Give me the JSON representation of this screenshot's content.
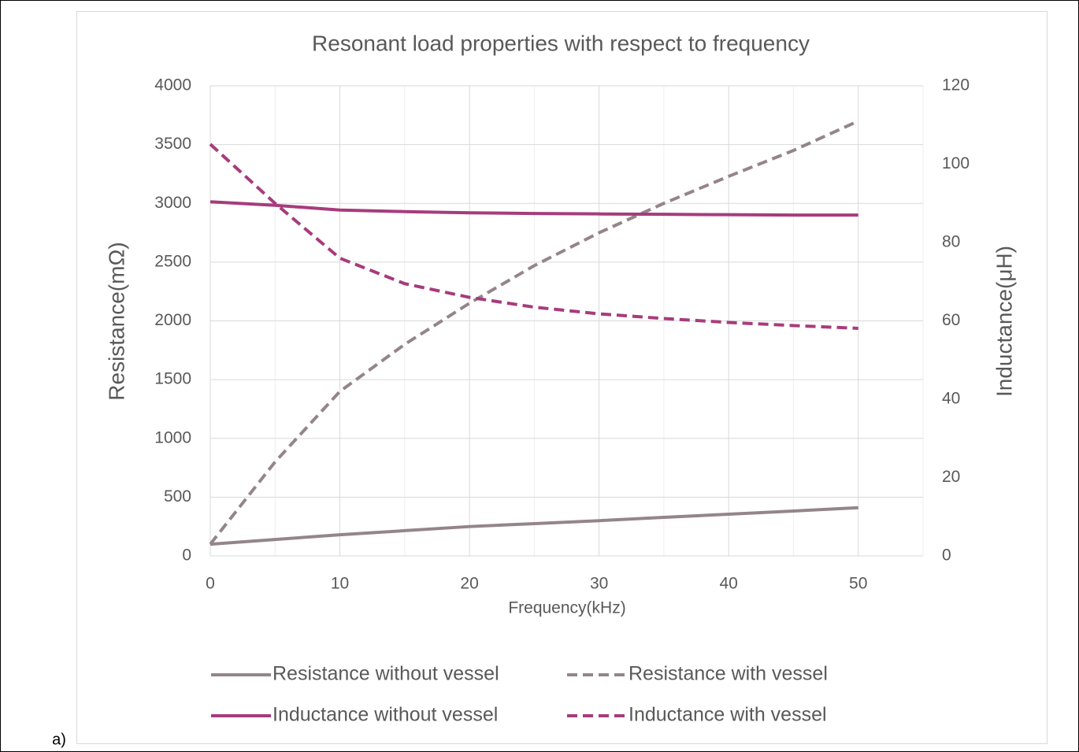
{
  "chart_data": {
    "type": "line",
    "panel_label": "a)",
    "title": "Resonant load properties with respect to frequency",
    "x_label": "Frequency(kHz)",
    "y_label": "Resistance(mΩ)",
    "y2_label": "Inductance(μH)",
    "x": [
      0,
      5,
      10,
      15,
      20,
      25,
      30,
      35,
      40,
      45,
      50
    ],
    "xlim": [
      0,
      55
    ],
    "xticks": [
      0,
      10,
      20,
      30,
      40,
      50
    ],
    "xminor_ticks": [
      5,
      15,
      25,
      35,
      45,
      55
    ],
    "ylim": [
      0,
      4000
    ],
    "yticks": [
      0,
      500,
      1000,
      1500,
      2000,
      2500,
      3000,
      3500,
      4000
    ],
    "y2lim": [
      0,
      120
    ],
    "y2ticks": [
      0,
      20,
      40,
      60,
      80,
      100,
      120
    ],
    "grid": true,
    "legend": "bottom",
    "series": [
      {
        "name": "Resistance without vessel",
        "color": "#94858b",
        "dashed": false,
        "axis": "y",
        "values": [
          100,
          140,
          180,
          215,
          250,
          275,
          300,
          328,
          355,
          382,
          410
        ]
      },
      {
        "name": "Resistance with vessel",
        "color": "#94858b",
        "dashed": true,
        "axis": "y",
        "values": [
          100,
          800,
          1400,
          1800,
          2150,
          2470,
          2750,
          3000,
          3230,
          3450,
          3700
        ]
      },
      {
        "name": "Inductance without vessel",
        "color": "#a63c7c",
        "dashed": false,
        "axis": "y2",
        "values": [
          90.4,
          89.5,
          88.3,
          87.9,
          87.6,
          87.4,
          87.3,
          87.2,
          87.1,
          87.0,
          87.0
        ]
      },
      {
        "name": "Inductance with vessel",
        "color": "#a63c7c",
        "dashed": true,
        "axis": "y2",
        "values": [
          105.1,
          90,
          76,
          69.5,
          66,
          63.5,
          61.8,
          60.6,
          59.6,
          58.8,
          58.1
        ]
      }
    ]
  }
}
